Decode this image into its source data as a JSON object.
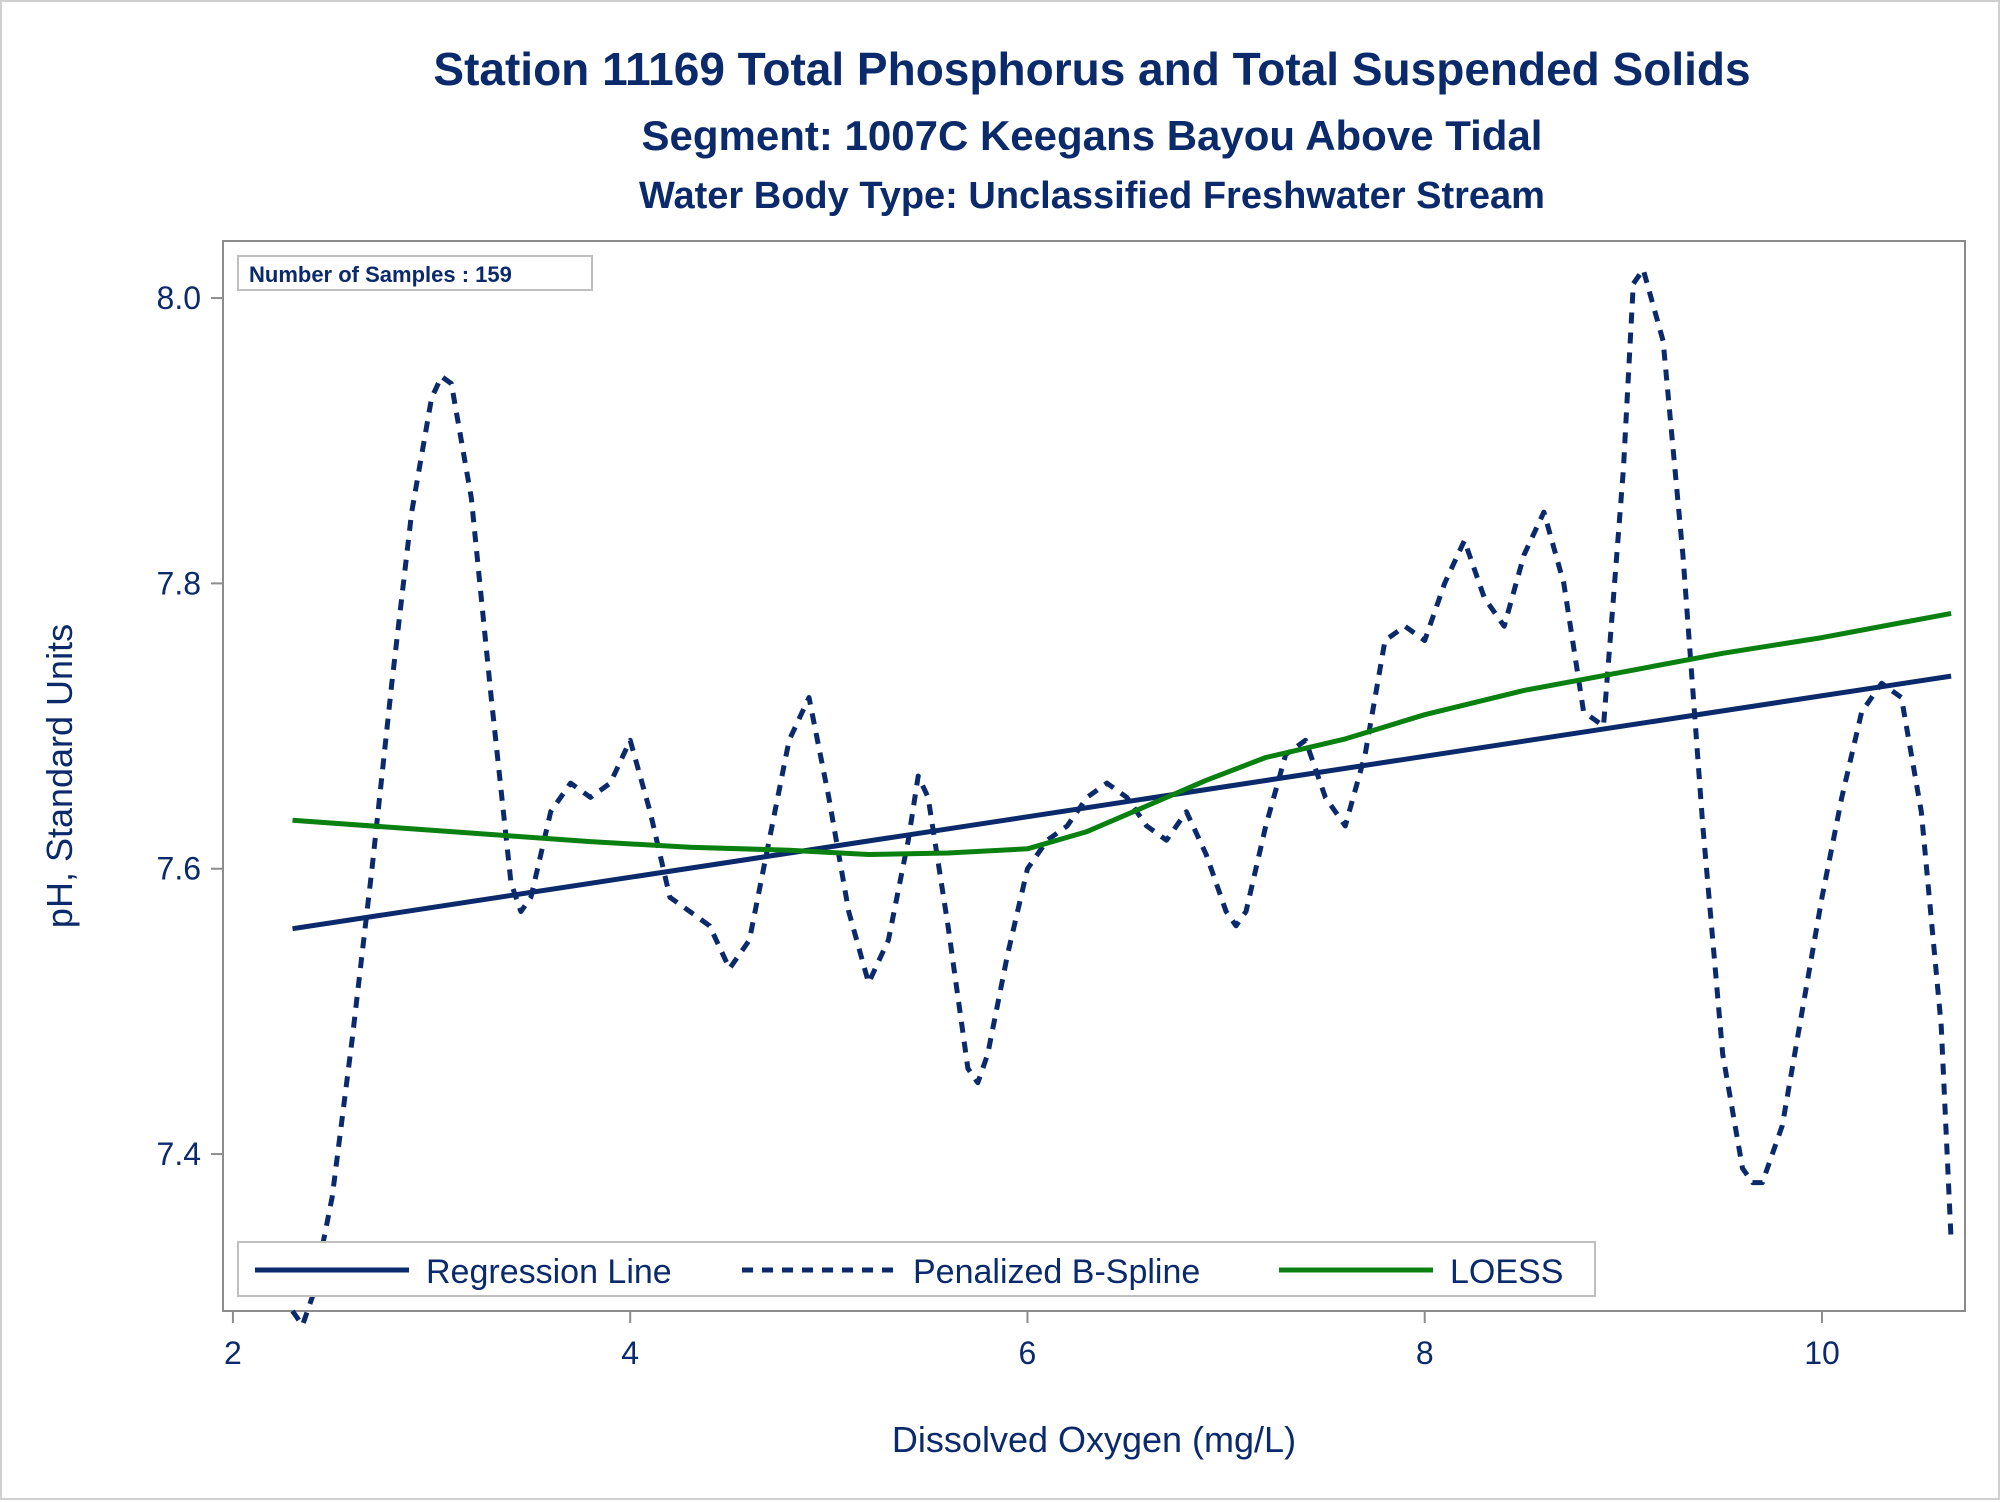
{
  "chart_data": {
    "type": "line",
    "title": "Station 11169  Total Phosphorus and Total Suspended Solids",
    "subtitle": "Segment: 1007C  Keegans Bayou Above Tidal",
    "subtitle2": "Water Body Type: Unclassified Freshwater Stream",
    "xlabel": "Dissolved Oxygen (mg/L)",
    "ylabel": "pH, Standard Units",
    "xlim": [
      1.95,
      10.72
    ],
    "ylim": [
      7.29,
      8.04
    ],
    "xticks": [
      2,
      4,
      6,
      8,
      10
    ],
    "yticks": [
      7.4,
      7.6,
      7.8,
      8.0
    ],
    "ytick_labels": [
      "7.4",
      "7.6",
      "7.8",
      "8.0"
    ],
    "inset": "Number of Samples : 159",
    "legend_position": "bottom-left inside",
    "series": [
      {
        "name": "Regression Line",
        "style": "solid",
        "color": "#0b2a6b",
        "x": [
          2.3,
          10.65
        ],
        "y": [
          7.558,
          7.735
        ]
      },
      {
        "name": "Penalized B-Spline",
        "style": "dashed",
        "color": "#0b2a6b",
        "x": [
          2.3,
          2.35,
          2.4,
          2.5,
          2.6,
          2.7,
          2.8,
          2.9,
          3.0,
          3.05,
          3.1,
          3.2,
          3.3,
          3.4,
          3.45,
          3.5,
          3.6,
          3.7,
          3.8,
          3.9,
          4.0,
          4.1,
          4.2,
          4.3,
          4.4,
          4.5,
          4.6,
          4.7,
          4.8,
          4.9,
          5.0,
          5.1,
          5.2,
          5.3,
          5.4,
          5.45,
          5.5,
          5.6,
          5.7,
          5.75,
          5.8,
          5.9,
          6.0,
          6.1,
          6.2,
          6.3,
          6.4,
          6.5,
          6.6,
          6.7,
          6.8,
          6.9,
          7.0,
          7.05,
          7.1,
          7.2,
          7.3,
          7.4,
          7.5,
          7.6,
          7.7,
          7.8,
          7.9,
          8.0,
          8.1,
          8.2,
          8.3,
          8.4,
          8.5,
          8.6,
          8.7,
          8.8,
          8.9,
          9.0,
          9.05,
          9.1,
          9.2,
          9.3,
          9.4,
          9.5,
          9.6,
          9.65,
          9.7,
          9.8,
          9.9,
          10.0,
          10.1,
          10.2,
          10.3,
          10.4,
          10.5,
          10.6,
          10.65
        ],
        "y": [
          7.29,
          7.28,
          7.3,
          7.37,
          7.48,
          7.6,
          7.73,
          7.85,
          7.93,
          7.945,
          7.94,
          7.86,
          7.72,
          7.59,
          7.57,
          7.58,
          7.64,
          7.66,
          7.65,
          7.66,
          7.69,
          7.64,
          7.58,
          7.57,
          7.56,
          7.53,
          7.55,
          7.62,
          7.69,
          7.72,
          7.65,
          7.57,
          7.52,
          7.55,
          7.62,
          7.665,
          7.65,
          7.56,
          7.46,
          7.45,
          7.47,
          7.54,
          7.6,
          7.62,
          7.63,
          7.65,
          7.66,
          7.65,
          7.63,
          7.62,
          7.64,
          7.61,
          7.57,
          7.56,
          7.57,
          7.63,
          7.68,
          7.69,
          7.65,
          7.63,
          7.68,
          7.76,
          7.77,
          7.76,
          7.8,
          7.83,
          7.79,
          7.77,
          7.82,
          7.85,
          7.8,
          7.71,
          7.7,
          7.88,
          8.01,
          8.02,
          7.97,
          7.82,
          7.63,
          7.47,
          7.39,
          7.38,
          7.38,
          7.42,
          7.5,
          7.58,
          7.65,
          7.71,
          7.73,
          7.72,
          7.64,
          7.49,
          7.34
        ]
      },
      {
        "name": "LOESS",
        "style": "solid",
        "color": "#0a8010",
        "x": [
          2.3,
          2.8,
          3.3,
          3.8,
          4.3,
          4.8,
          5.2,
          5.6,
          6.0,
          6.3,
          6.6,
          6.9,
          7.2,
          7.6,
          8.0,
          8.5,
          9.0,
          9.5,
          10.0,
          10.65
        ],
        "y": [
          7.634,
          7.629,
          7.624,
          7.619,
          7.615,
          7.613,
          7.61,
          7.611,
          7.614,
          7.626,
          7.644,
          7.662,
          7.678,
          7.691,
          7.708,
          7.725,
          7.738,
          7.751,
          7.762,
          7.779
        ]
      }
    ]
  }
}
